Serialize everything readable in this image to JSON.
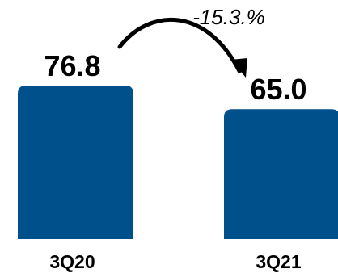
{
  "chart_data": {
    "type": "bar",
    "categories": [
      "3Q20",
      "3Q21"
    ],
    "values": [
      76.8,
      65.0
    ],
    "value_labels": [
      "76.8",
      "65.0"
    ],
    "annotation": "-15.3.%",
    "bar_color": "#00508c",
    "grid": false,
    "legend": "none"
  }
}
